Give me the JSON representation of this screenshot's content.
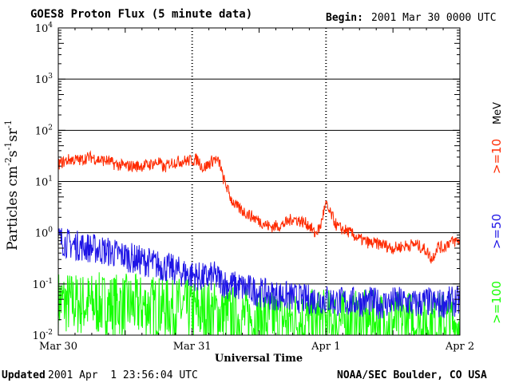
{
  "chart_data": {
    "type": "line",
    "title": "GOES8 Proton Flux (5 minute data)",
    "begin_label": "Begin:",
    "begin_value": "2001 Mar 30 0000 UTC",
    "xlabel": "Universal Time",
    "ylabel": "Particles cm⁻²s⁻¹sr⁻¹",
    "ylabel_parts": [
      "Particles cm",
      "-2",
      "s",
      "-1",
      "sr",
      "-1"
    ],
    "yscale": "log",
    "ylim": [
      0.01,
      10000
    ],
    "xlim": [
      0,
      72
    ],
    "x_unit": "hours since 2001 Mar 30 0000 UTC",
    "x_ticks": [
      {
        "x": 0,
        "label": "Mar 30"
      },
      {
        "x": 24,
        "label": "Mar 31"
      },
      {
        "x": 48,
        "label": "Apr 1"
      },
      {
        "x": 72,
        "label": "Apr 2"
      }
    ],
    "y_ticks": [
      {
        "value": 0.01,
        "base": "10",
        "exp": "-2"
      },
      {
        "value": 0.1,
        "base": "10",
        "exp": "-1"
      },
      {
        "value": 1,
        "base": "10",
        "exp": "0"
      },
      {
        "value": 10,
        "base": "10",
        "exp": "1"
      },
      {
        "value": 100,
        "base": "10",
        "exp": "2"
      },
      {
        "value": 1000,
        "base": "10",
        "exp": "3"
      },
      {
        "value": 10000,
        "base": "10",
        "exp": "4"
      }
    ],
    "grid": true,
    "legend_position": "right",
    "legend_unit": "MeV",
    "series": [
      {
        "name": ">=10",
        "color": "#ff2a00",
        "x": [
          0,
          2,
          4,
          5,
          6,
          7,
          9,
          10,
          12,
          14,
          16,
          18,
          19,
          20,
          22,
          24,
          25,
          26,
          27,
          28,
          29,
          29.5,
          30,
          31,
          32,
          33,
          34,
          35,
          36,
          38,
          40,
          41,
          42,
          44,
          45,
          46,
          47,
          47.5,
          48,
          48.5,
          49,
          50,
          52,
          54,
          56,
          58,
          60,
          62,
          64,
          66,
          67,
          68,
          69,
          70,
          72
        ],
        "y": [
          22,
          27,
          26,
          29,
          30,
          27,
          25,
          22,
          20,
          20,
          21,
          24,
          18,
          23,
          25,
          26,
          27,
          18,
          22,
          28,
          22,
          12,
          9,
          4.5,
          3.2,
          2.7,
          2.3,
          2.0,
          1.7,
          1.3,
          1.4,
          1.6,
          1.9,
          1.6,
          1.4,
          0.95,
          1.3,
          2.4,
          3.6,
          2.6,
          2.2,
          1.3,
          1.05,
          0.75,
          0.62,
          0.6,
          0.5,
          0.55,
          0.6,
          0.45,
          0.3,
          0.55,
          0.5,
          0.65,
          0.7
        ],
        "noise": 0.12
      },
      {
        "name": ">=50",
        "color": "#1e14e6",
        "x": [
          0,
          2,
          4,
          6,
          8,
          10,
          12,
          14,
          16,
          18,
          20,
          22,
          24,
          26,
          28,
          29,
          30,
          32,
          34,
          36,
          38,
          40,
          42,
          44,
          46,
          48,
          50,
          52,
          54,
          56,
          58,
          60,
          62,
          64,
          66,
          68,
          70,
          72
        ],
        "y": [
          0.75,
          0.6,
          0.55,
          0.5,
          0.45,
          0.4,
          0.35,
          0.3,
          0.27,
          0.23,
          0.2,
          0.17,
          0.15,
          0.13,
          0.14,
          0.12,
          0.1,
          0.09,
          0.08,
          0.07,
          0.06,
          0.06,
          0.055,
          0.05,
          0.05,
          0.05,
          0.045,
          0.045,
          0.045,
          0.045,
          0.04,
          0.045,
          0.045,
          0.04,
          0.045,
          0.04,
          0.045,
          0.045
        ],
        "noise": 0.3
      },
      {
        "name": ">=100",
        "color": "#14ff00",
        "x": [
          0,
          4,
          8,
          12,
          16,
          20,
          24,
          26,
          28,
          30,
          32,
          36,
          40,
          44,
          48,
          52,
          56,
          60,
          64,
          68,
          72
        ],
        "y": [
          0.045,
          0.04,
          0.04,
          0.038,
          0.036,
          0.035,
          0.03,
          0.028,
          0.027,
          0.024,
          0.022,
          0.02,
          0.02,
          0.019,
          0.019,
          0.018,
          0.018,
          0.018,
          0.018,
          0.017,
          0.017
        ],
        "noise": 0.45
      }
    ]
  },
  "footer": {
    "updated_label": "Updated",
    "updated_value": "2001 Apr  1 23:56:04 UTC",
    "source": "NOAA/SEC Boulder, CO USA"
  }
}
